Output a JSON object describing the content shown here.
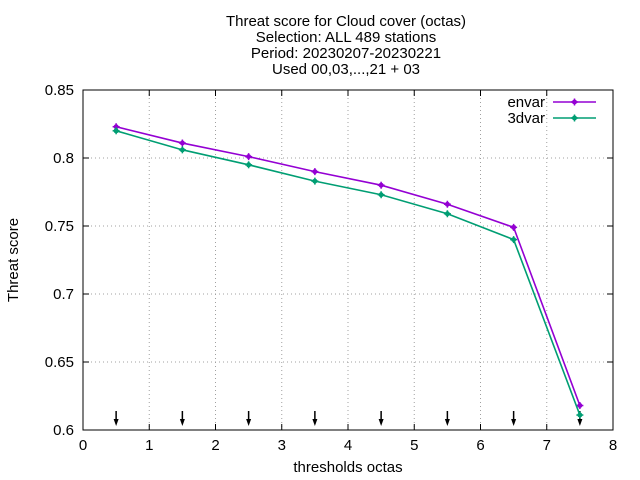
{
  "chart_data": {
    "type": "line",
    "title_lines": [
      "Threat score  for Cloud cover (octas)",
      "Selection: ALL    489 stations",
      "Period: 20230207-20230221",
      "Used 00,03,...,21 + 03"
    ],
    "xlabel": "thresholds octas",
    "ylabel": "Threat score",
    "xlim": [
      0,
      8
    ],
    "ylim": [
      0.6,
      0.85
    ],
    "xticks": [
      "0",
      "1",
      "2",
      "3",
      "4",
      "5",
      "6",
      "7",
      "8"
    ],
    "yticks": [
      "0.6",
      "0.65",
      "0.7",
      "0.75",
      "0.8",
      "0.85"
    ],
    "grid": true,
    "legend_position": "top-right",
    "x": [
      0.5,
      1.5,
      2.5,
      3.5,
      4.5,
      5.5,
      6.5,
      7.5
    ],
    "series": [
      {
        "name": "envar",
        "color": "#9400d3",
        "values": [
          0.823,
          0.811,
          0.801,
          0.79,
          0.78,
          0.766,
          0.749,
          0.618
        ]
      },
      {
        "name": "3dvar",
        "color": "#009e73",
        "values": [
          0.82,
          0.806,
          0.795,
          0.783,
          0.773,
          0.759,
          0.74,
          0.611
        ]
      }
    ],
    "arrow_markers_x": [
      0.5,
      1.5,
      2.5,
      3.5,
      4.5,
      5.5,
      6.5,
      7.5
    ]
  }
}
